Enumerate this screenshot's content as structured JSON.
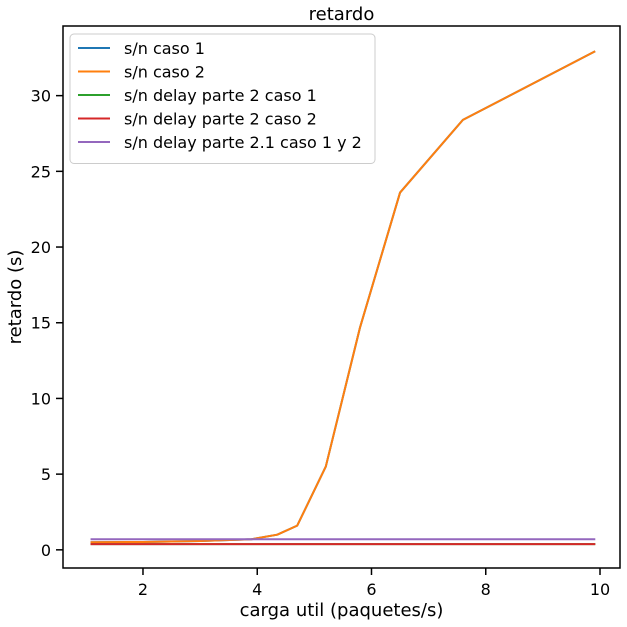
{
  "chart_data": {
    "type": "line",
    "title": "retardo",
    "xlabel": "carga util (paquetes/s)",
    "ylabel": "retardo (s)",
    "xlim": [
      0.6,
      10.35
    ],
    "ylim": [
      -1.2,
      34.6
    ],
    "xticks": [
      2,
      4,
      6,
      8,
      10
    ],
    "yticks": [
      0,
      5,
      10,
      15,
      20,
      25,
      30
    ],
    "grid": false,
    "legend_position": "top-left",
    "series": [
      {
        "name": "s/n caso 1",
        "color": "#1f77b4",
        "x": [
          1.1,
          2.0,
          3.0,
          3.9,
          4.35,
          4.7,
          5.2,
          5.8,
          6.5,
          7.6,
          9.9
        ],
        "y": [
          0.5,
          0.52,
          0.58,
          0.7,
          1.0,
          1.6,
          5.5,
          14.7,
          23.6,
          28.4,
          32.9
        ]
      },
      {
        "name": "s/n caso 2",
        "color": "#ff7f0e",
        "x": [
          1.1,
          2.0,
          3.0,
          3.9,
          4.35,
          4.7,
          5.2,
          5.8,
          6.5,
          7.6,
          9.9
        ],
        "y": [
          0.5,
          0.52,
          0.58,
          0.7,
          1.0,
          1.6,
          5.5,
          14.7,
          23.6,
          28.4,
          32.9
        ]
      },
      {
        "name": "s/n delay parte 2 caso 1",
        "color": "#2ca02c",
        "x": [
          1.1,
          9.9
        ],
        "y": [
          0.38,
          0.38
        ]
      },
      {
        "name": "s/n delay parte 2 caso 2",
        "color": "#d62728",
        "x": [
          1.1,
          9.9
        ],
        "y": [
          0.38,
          0.38
        ]
      },
      {
        "name": "s/n delay parte 2.1 caso 1 y 2",
        "color": "#9467bd",
        "x": [
          1.1,
          9.9
        ],
        "y": [
          0.7,
          0.7
        ]
      }
    ]
  }
}
